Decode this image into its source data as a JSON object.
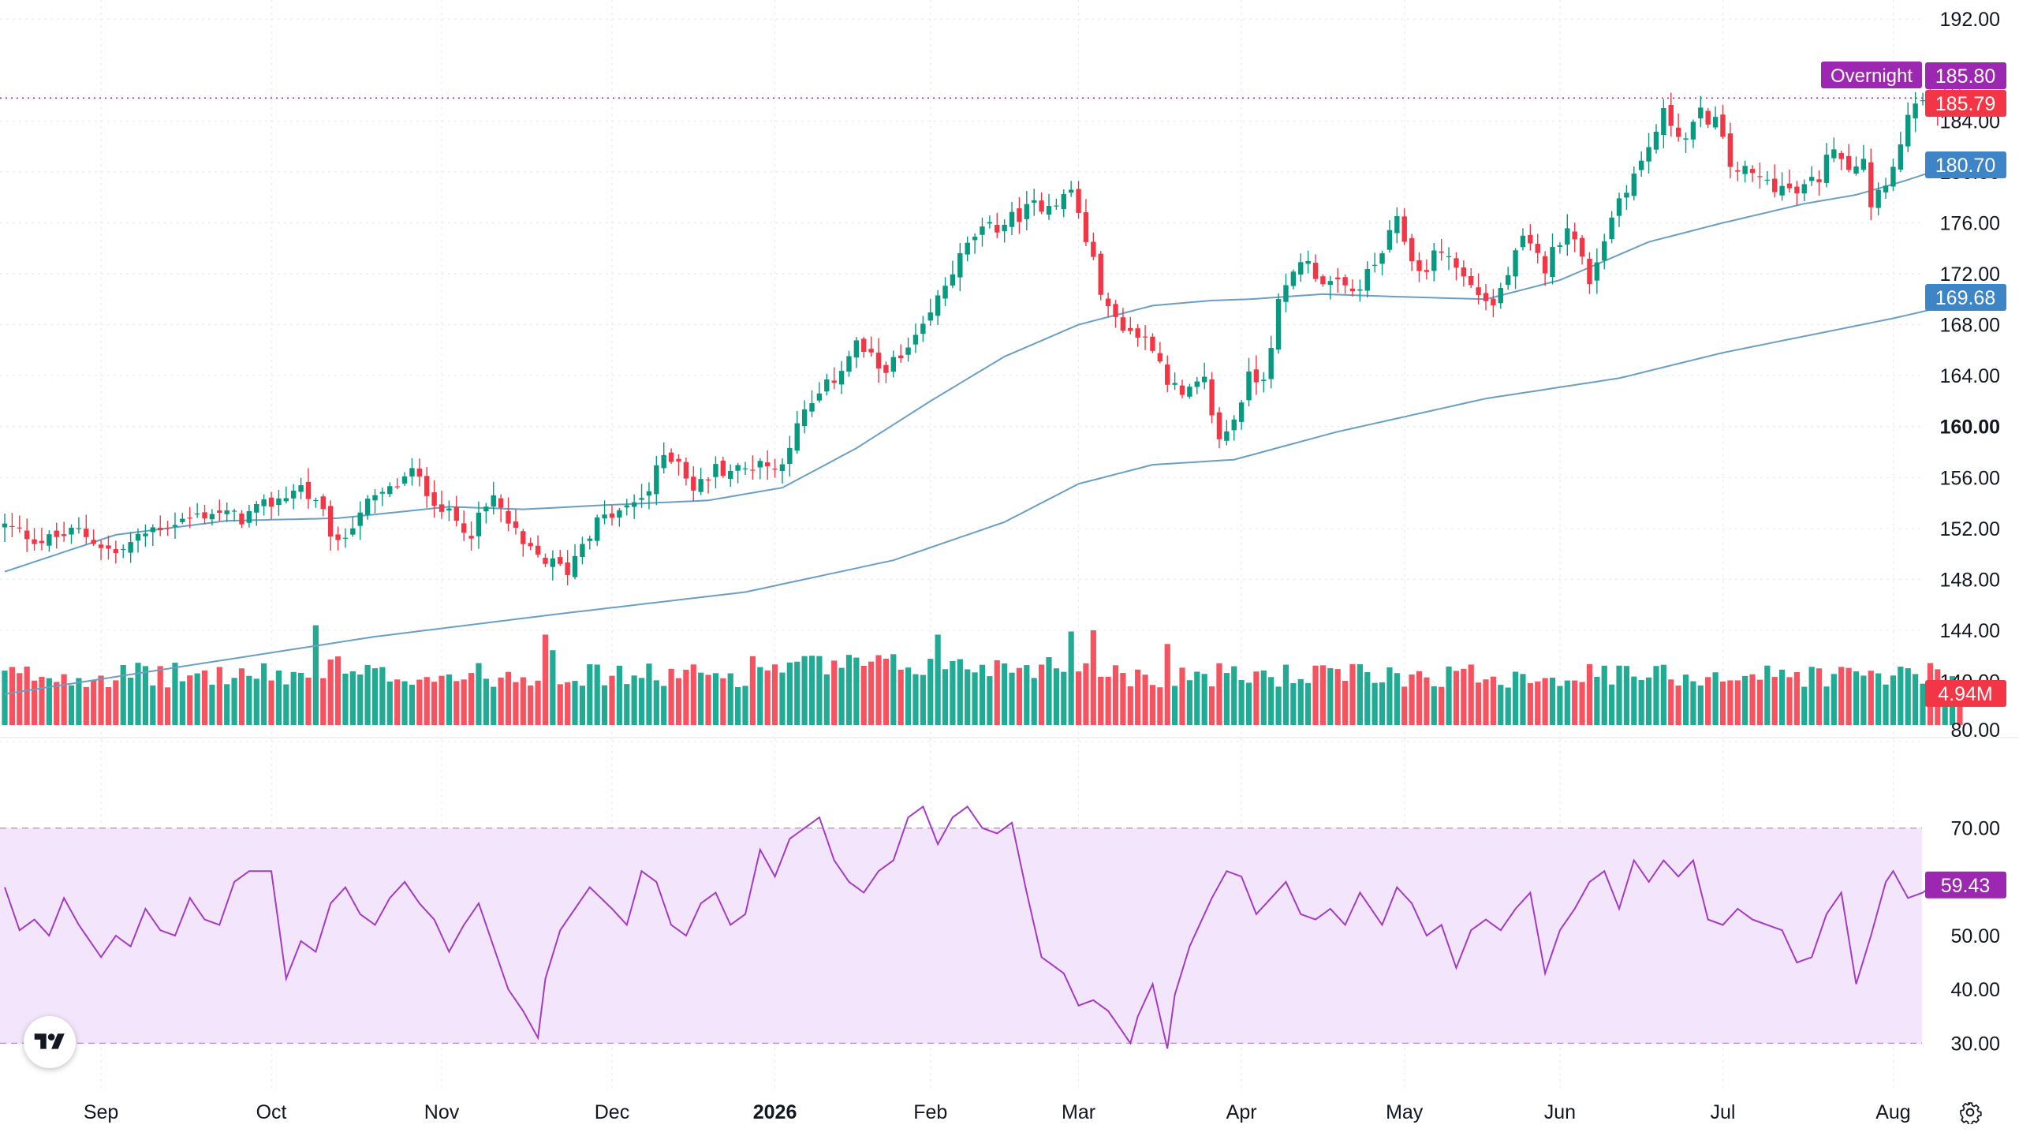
{
  "chart_data": {
    "type": "candlestick",
    "symbol_panel": {
      "y_ticks": [
        192,
        184,
        180,
        176,
        172,
        168,
        164,
        160,
        156,
        152,
        148,
        144,
        140
      ],
      "y_tick_labels": [
        "192.00",
        "184.00",
        "180.00",
        "176.00",
        "172.00",
        "168.00",
        "164.00",
        "160.00",
        "156.00",
        "152.00",
        "148.00",
        "144.00",
        "140.00"
      ],
      "bold_tick": "160.00",
      "ylim": [
        136.5,
        193.5
      ],
      "grid": true
    },
    "x_axis": {
      "labels": [
        "Sep",
        "Oct",
        "Nov",
        "Dec",
        "2026",
        "Feb",
        "Mar",
        "Apr",
        "May",
        "Jun",
        "Jul",
        "Aug"
      ],
      "label_bar_index": [
        13,
        36,
        59,
        82,
        104,
        125,
        145,
        167,
        189,
        210,
        232,
        255
      ],
      "bold_label": "2026"
    },
    "price_badges": [
      {
        "label": "Overnight",
        "value": "185.80",
        "color": "#9c27b0"
      },
      {
        "label": "",
        "value": "185.79",
        "color": "#f23645"
      },
      {
        "label": "",
        "value": "180.70",
        "color": "#3d85c6"
      },
      {
        "label": "",
        "value": "169.68",
        "color": "#3d85c6"
      }
    ],
    "last_price": 185.8,
    "moving_averages": [
      {
        "value_now": 180.7,
        "knots": [
          [
            0,
            148.6
          ],
          [
            15,
            151.5
          ],
          [
            30,
            152.6
          ],
          [
            45,
            152.8
          ],
          [
            60,
            153.7
          ],
          [
            70,
            153.5
          ],
          [
            80,
            153.8
          ],
          [
            95,
            154.2
          ],
          [
            105,
            155.2
          ],
          [
            115,
            158.3
          ],
          [
            125,
            162.0
          ],
          [
            135,
            165.5
          ],
          [
            145,
            168.0
          ],
          [
            155,
            169.5
          ],
          [
            163,
            169.9
          ],
          [
            168,
            170.0
          ],
          [
            178,
            170.4
          ],
          [
            188,
            170.2
          ],
          [
            200,
            170.0
          ],
          [
            210,
            171.5
          ],
          [
            222,
            174.5
          ],
          [
            232,
            176.0
          ],
          [
            243,
            177.5
          ],
          [
            250,
            178.2
          ],
          [
            256,
            179.2
          ],
          [
            264,
            180.7
          ]
        ]
      },
      {
        "value_now": 169.68,
        "knots": [
          [
            0,
            139.0
          ],
          [
            50,
            143.5
          ],
          [
            75,
            145.3
          ],
          [
            100,
            147.0
          ],
          [
            120,
            149.5
          ],
          [
            135,
            152.5
          ],
          [
            145,
            155.5
          ],
          [
            155,
            157.0
          ],
          [
            166,
            157.4
          ],
          [
            180,
            159.6
          ],
          [
            200,
            162.2
          ],
          [
            218,
            163.8
          ],
          [
            232,
            165.8
          ],
          [
            255,
            168.5
          ],
          [
            264,
            169.7
          ]
        ]
      }
    ],
    "price_knots": [
      [
        0,
        152.2
      ],
      [
        5,
        151.0
      ],
      [
        10,
        151.8
      ],
      [
        15,
        150.0
      ],
      [
        20,
        152.0
      ],
      [
        28,
        153.3
      ],
      [
        32,
        152.8
      ],
      [
        36,
        154.0
      ],
      [
        40,
        155.3
      ],
      [
        43,
        153.0
      ],
      [
        45,
        150.5
      ],
      [
        48,
        153.5
      ],
      [
        52,
        155.0
      ],
      [
        55,
        156.4
      ],
      [
        57,
        155.0
      ],
      [
        60,
        153.0
      ],
      [
        63,
        151.8
      ],
      [
        66,
        154.4
      ],
      [
        70,
        150.5
      ],
      [
        73,
        149.5
      ],
      [
        76,
        148.7
      ],
      [
        78,
        151.0
      ],
      [
        80,
        152.5
      ],
      [
        84,
        153.5
      ],
      [
        87,
        155.0
      ],
      [
        89,
        157.8
      ],
      [
        91,
        157.5
      ],
      [
        93,
        155.0
      ],
      [
        96,
        156.7
      ],
      [
        100,
        156.6
      ],
      [
        102,
        157.4
      ],
      [
        104,
        156.5
      ],
      [
        106,
        158.7
      ],
      [
        108,
        161.0
      ],
      [
        112,
        163.8
      ],
      [
        115,
        166.5
      ],
      [
        118,
        164.6
      ],
      [
        121,
        165.2
      ],
      [
        124,
        167.5
      ],
      [
        126,
        170.0
      ],
      [
        128,
        172.3
      ],
      [
        131,
        175.0
      ],
      [
        135,
        176.0
      ],
      [
        139,
        177.3
      ],
      [
        143,
        178.0
      ],
      [
        144,
        178.6
      ],
      [
        147,
        172.8
      ],
      [
        149,
        169.0
      ],
      [
        152,
        167.5
      ],
      [
        155,
        166.5
      ],
      [
        157,
        163.8
      ],
      [
        159,
        162.2
      ],
      [
        162,
        163.5
      ],
      [
        164,
        158.8
      ],
      [
        166,
        160.7
      ],
      [
        168,
        163.8
      ],
      [
        170,
        164.0
      ],
      [
        172,
        169.5
      ],
      [
        175,
        173.3
      ],
      [
        178,
        171.5
      ],
      [
        182,
        170.5
      ],
      [
        185,
        172.6
      ],
      [
        188,
        176.0
      ],
      [
        191,
        172.0
      ],
      [
        194,
        174.0
      ],
      [
        198,
        171.0
      ],
      [
        201,
        169.5
      ],
      [
        205,
        174.6
      ],
      [
        208,
        172.5
      ],
      [
        211,
        176.0
      ],
      [
        214,
        171.5
      ],
      [
        216,
        174.8
      ],
      [
        218,
        178.0
      ],
      [
        221,
        180.7
      ],
      [
        224,
        184.5
      ],
      [
        227,
        182.6
      ],
      [
        229,
        184.5
      ],
      [
        231,
        184.0
      ],
      [
        233,
        180.5
      ],
      [
        236,
        179.7
      ],
      [
        239,
        179.0
      ],
      [
        242,
        178.3
      ],
      [
        245,
        179.6
      ],
      [
        247,
        182.3
      ],
      [
        249,
        180.5
      ],
      [
        251,
        181.2
      ],
      [
        252,
        177.6
      ],
      [
        254,
        179.5
      ],
      [
        256,
        182.0
      ],
      [
        258,
        185.8
      ],
      [
        260,
        184.5
      ],
      [
        262,
        185.3
      ],
      [
        264,
        185.8
      ]
    ],
    "volume_axis_label": "80.00",
    "volume_badge": {
      "value": "4.94M",
      "color": "#f23645"
    },
    "volume_last": 4.94,
    "volume_spikes": {
      "42": 16.0,
      "44": 10.5,
      "45": 11.0,
      "73": 14.5,
      "74": 12.0,
      "126": 14.5,
      "144": 15.0,
      "147": 15.2,
      "157": 13.0
    },
    "rsi_panel": {
      "y_ticks": [
        70,
        50,
        40,
        30
      ],
      "y_tick_labels": [
        "70.00",
        "50.00",
        "40.00",
        "30.00"
      ],
      "band": [
        30,
        70
      ],
      "ylim": [
        28,
        77
      ],
      "badge": {
        "value": "59.43",
        "color": "#9c27b0"
      },
      "knots": [
        [
          0,
          59
        ],
        [
          2,
          51
        ],
        [
          4,
          53
        ],
        [
          6,
          50
        ],
        [
          8,
          57
        ],
        [
          10,
          52
        ],
        [
          13,
          46
        ],
        [
          15,
          50
        ],
        [
          17,
          48
        ],
        [
          19,
          55
        ],
        [
          21,
          51
        ],
        [
          23,
          50
        ],
        [
          25,
          57
        ],
        [
          27,
          53
        ],
        [
          29,
          52
        ],
        [
          31,
          60
        ],
        [
          33,
          62
        ],
        [
          36,
          62
        ],
        [
          38,
          42
        ],
        [
          40,
          49
        ],
        [
          42,
          47
        ],
        [
          44,
          56
        ],
        [
          46,
          59
        ],
        [
          48,
          54
        ],
        [
          50,
          52
        ],
        [
          52,
          57
        ],
        [
          54,
          60
        ],
        [
          56,
          56
        ],
        [
          58,
          53
        ],
        [
          60,
          47
        ],
        [
          62,
          52
        ],
        [
          64,
          56
        ],
        [
          66,
          48
        ],
        [
          68,
          40
        ],
        [
          70,
          36
        ],
        [
          72,
          31
        ],
        [
          73,
          42
        ],
        [
          75,
          51
        ],
        [
          77,
          55
        ],
        [
          79,
          59
        ],
        [
          82,
          55
        ],
        [
          84,
          52
        ],
        [
          86,
          62
        ],
        [
          88,
          60
        ],
        [
          90,
          52
        ],
        [
          92,
          50
        ],
        [
          94,
          56
        ],
        [
          96,
          58
        ],
        [
          98,
          52
        ],
        [
          100,
          54
        ],
        [
          102,
          66
        ],
        [
          104,
          61
        ],
        [
          106,
          68
        ],
        [
          108,
          70
        ],
        [
          110,
          72
        ],
        [
          112,
          64
        ],
        [
          114,
          60
        ],
        [
          116,
          58
        ],
        [
          118,
          62
        ],
        [
          120,
          64
        ],
        [
          122,
          72
        ],
        [
          124,
          74
        ],
        [
          126,
          67
        ],
        [
          128,
          72
        ],
        [
          130,
          74
        ],
        [
          132,
          70
        ],
        [
          134,
          69
        ],
        [
          136,
          71
        ],
        [
          138,
          58
        ],
        [
          140,
          46
        ],
        [
          143,
          43
        ],
        [
          145,
          37
        ],
        [
          147,
          38
        ],
        [
          149,
          36
        ],
        [
          152,
          30
        ],
        [
          153,
          35
        ],
        [
          155,
          41
        ],
        [
          157,
          29
        ],
        [
          158,
          39
        ],
        [
          160,
          48
        ],
        [
          163,
          57
        ],
        [
          165,
          62
        ],
        [
          167,
          61
        ],
        [
          169,
          54
        ],
        [
          171,
          57
        ],
        [
          173,
          60
        ],
        [
          175,
          54
        ],
        [
          177,
          53
        ],
        [
          179,
          55
        ],
        [
          181,
          52
        ],
        [
          183,
          58
        ],
        [
          186,
          52
        ],
        [
          188,
          59
        ],
        [
          190,
          56
        ],
        [
          192,
          50
        ],
        [
          194,
          52
        ],
        [
          196,
          44
        ],
        [
          198,
          51
        ],
        [
          200,
          53
        ],
        [
          202,
          51
        ],
        [
          204,
          55
        ],
        [
          206,
          58
        ],
        [
          208,
          43
        ],
        [
          210,
          51
        ],
        [
          212,
          55
        ],
        [
          214,
          60
        ],
        [
          216,
          62
        ],
        [
          218,
          55
        ],
        [
          220,
          64
        ],
        [
          222,
          60
        ],
        [
          224,
          64
        ],
        [
          226,
          61
        ],
        [
          228,
          64
        ],
        [
          230,
          53
        ],
        [
          232,
          52
        ],
        [
          234,
          55
        ],
        [
          236,
          53
        ],
        [
          238,
          52
        ],
        [
          240,
          51
        ],
        [
          242,
          45
        ],
        [
          244,
          46
        ],
        [
          246,
          54
        ],
        [
          248,
          58
        ],
        [
          250,
          41
        ],
        [
          252,
          50
        ],
        [
          254,
          60
        ],
        [
          255,
          62
        ],
        [
          257,
          57
        ],
        [
          259,
          58
        ],
        [
          261,
          60
        ],
        [
          264,
          59.43
        ]
      ]
    }
  }
}
